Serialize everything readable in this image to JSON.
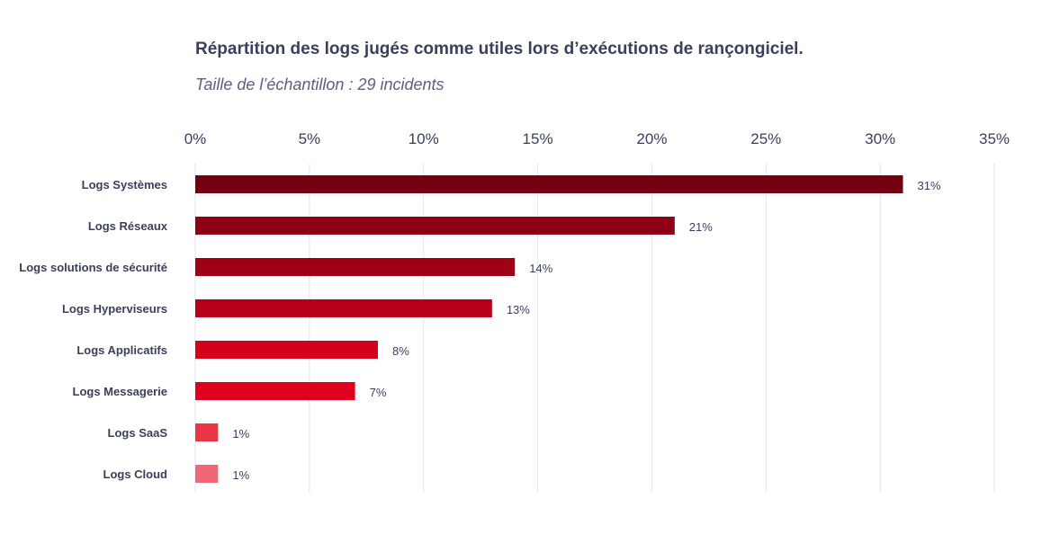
{
  "chart_data": {
    "type": "bar",
    "orientation": "horizontal",
    "title": "Répartition des logs jugés comme utiles lors d’exécutions de rançongiciel.",
    "subtitle": "Taille de l’échantillon : 29 incidents",
    "xlim": [
      0,
      35
    ],
    "xticks": [
      0,
      5,
      10,
      15,
      20,
      25,
      30,
      35
    ],
    "tick_labels": [
      "0%",
      "5%",
      "10%",
      "15%",
      "20%",
      "25%",
      "30%",
      "35%"
    ],
    "grid": true,
    "axis_position": "top",
    "categories": [
      "Logs Systèmes",
      "Logs Réseaux",
      "Logs solutions de sécurité",
      "Logs Hyperviseurs",
      "Logs Applicatifs",
      "Logs Messagerie",
      "Logs SaaS",
      "Logs Cloud"
    ],
    "values": [
      31,
      21,
      14,
      13,
      8,
      7,
      1,
      1
    ],
    "value_labels": [
      "31%",
      "21%",
      "14%",
      "13%",
      "8%",
      "7%",
      "1%",
      "1%"
    ],
    "colors": [
      "#730010",
      "#8e0014",
      "#a00016",
      "#b50018",
      "#d4001c",
      "#e0001e",
      "#ec3447",
      "#f06877"
    ]
  }
}
